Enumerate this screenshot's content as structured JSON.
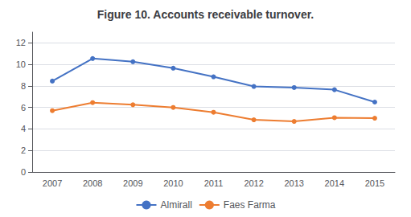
{
  "chart_data": {
    "type": "line",
    "title": "Figure 10. Accounts receivable turnover.",
    "categories": [
      2007,
      2008,
      2009,
      2010,
      2011,
      2012,
      2013,
      2014,
      2015
    ],
    "series": [
      {
        "name": "Almirall",
        "color": "#4472C4",
        "marker": "circle",
        "values": [
          8.45,
          10.55,
          10.25,
          9.65,
          8.85,
          7.95,
          7.85,
          7.65,
          6.5
        ]
      },
      {
        "name": "Faes Farma",
        "color": "#ED7D31",
        "marker": "circle",
        "values": [
          5.7,
          6.45,
          6.25,
          6.0,
          5.55,
          4.85,
          4.7,
          5.05,
          5.0
        ]
      }
    ],
    "ylim": [
      0,
      13
    ],
    "yticks": [
      0,
      2,
      4,
      6,
      8,
      10,
      12
    ],
    "grid": true,
    "legend": "bottom"
  }
}
